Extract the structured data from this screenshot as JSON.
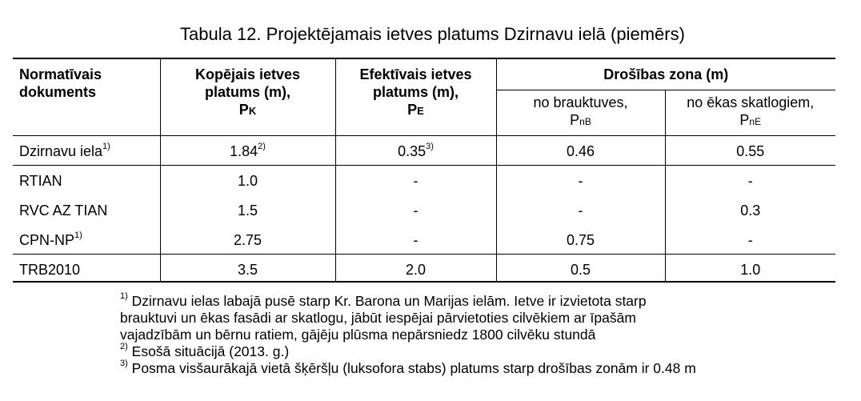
{
  "caption": "Tabula 12. Projektējamais ietves platums Dzirnavu ielā (piemērs)",
  "headers": {
    "col1": [
      "Normatīvais",
      "dokuments"
    ],
    "col2": [
      "Kopējais ietves",
      "platums (m),"
    ],
    "col2_sym": "P",
    "col2_sub": "K",
    "col3": [
      "Efektīvais ietves",
      "platums (m),"
    ],
    "col3_sym": "P",
    "col3_sub": "E",
    "group": "Drošības zona (m)",
    "sub1": "no brauktuves,",
    "sub1_sym": "P",
    "sub1_sub": "nB",
    "sub2": "no ēkas skatlogiem,",
    "sub2_sym": "P",
    "sub2_sub": "nE"
  },
  "rows": [
    {
      "doc": "Dzirnavu iela",
      "doc_sup": "1)",
      "total": "1.84",
      "total_sup": "2)",
      "effective": "0.35",
      "effective_sup": "3)",
      "road": "0.46",
      "building": "0.55"
    },
    {
      "doc": "RTIAN",
      "doc_sup": "",
      "total": "1.0",
      "total_sup": "",
      "effective": "-",
      "effective_sup": "",
      "road": "-",
      "building": "-"
    },
    {
      "doc": "RVC AZ TIAN",
      "doc_sup": "",
      "total": "1.5",
      "total_sup": "",
      "effective": "-",
      "effective_sup": "",
      "road": "-",
      "building": "0.3"
    },
    {
      "doc": "CPN-NP",
      "doc_sup": "1)",
      "total": "2.75",
      "total_sup": "",
      "effective": "-",
      "effective_sup": "",
      "road": "0.75",
      "building": "-"
    },
    {
      "doc": "TRB2010",
      "doc_sup": "",
      "total": "3.5",
      "total_sup": "",
      "effective": "2.0",
      "effective_sup": "",
      "road": "0.5",
      "building": "1.0"
    }
  ],
  "notes": {
    "n1_mark": "1)",
    "n1_lines": [
      "Dzirnavu ielas labajā pusē starp Kr. Barona un Marijas ielām. Ietve ir izvietota starp",
      "brauktuvi un ēkas fasādi ar skatlogu, jābūt iespējai pārvietoties cilvēkiem ar īpašām",
      "vajadzībām un bērnu ratiem, gājēju plūsma nepārsniedz 1800 cilvēku stundā"
    ],
    "n2_mark": "2)",
    "n2": "Esošā situācijā (2013. g.)",
    "n3_mark": "3)",
    "n3": "Posma visšaurākajā vietā šķēršļu (luksofora stabs) platums starp drošības zonām ir 0.48 m"
  }
}
